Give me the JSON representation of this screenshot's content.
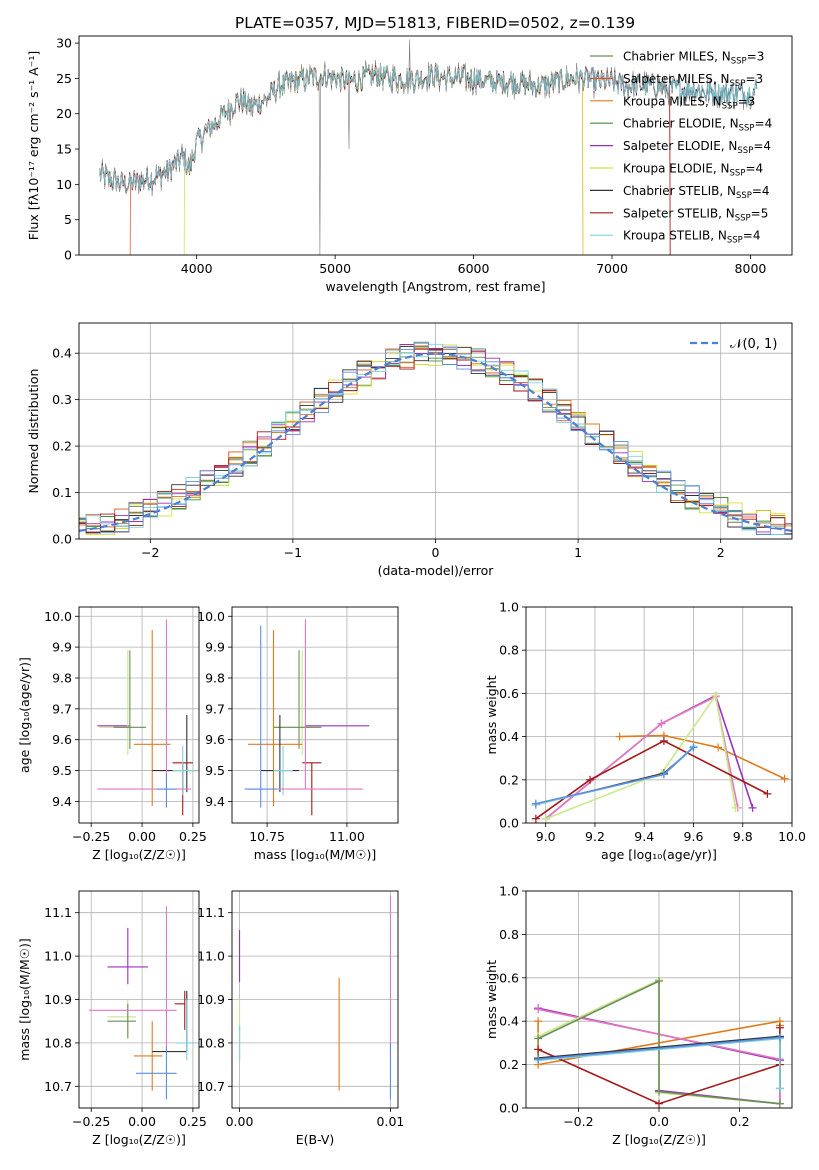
{
  "figure_title": "PLATE=0357, MJD=51813, FIBERID=0502, z=0.139",
  "models": [
    {
      "name": "Chabrier MILES",
      "nssp": "3",
      "color": "#6b8e5a"
    },
    {
      "name": "Salpeter MILES",
      "nssp": "3",
      "color": "#d9542b"
    },
    {
      "name": "Kroupa MILES",
      "nssp": "3",
      "color": "#e07b1a"
    },
    {
      "name": "Chabrier ELODIE",
      "nssp": "4",
      "color": "#3f8f3f"
    },
    {
      "name": "Salpeter ELODIE",
      "nssp": "4",
      "color": "#9b30c0"
    },
    {
      "name": "Kroupa ELODIE",
      "nssp": "4",
      "color": "#d4e03a"
    },
    {
      "name": "Chabrier STELIB",
      "nssp": "4",
      "color": "#333333"
    },
    {
      "name": "Salpeter STELIB",
      "nssp": "5",
      "color": "#a51818"
    },
    {
      "name": "Kroupa STELIB",
      "nssp": "4",
      "color": "#7fd3dd"
    }
  ],
  "extra_colors": {
    "pink": "#e377c2",
    "blue": "#5b8fe0",
    "lightgreen": "#c8e88a"
  },
  "chart_data": [
    {
      "id": "spectrum",
      "type": "line",
      "xlabel": "wavelength [Angstrom, rest frame]",
      "ylabel": "Flux [fλ10⁻¹⁷ erg cm⁻² s⁻¹ A⁻¹]",
      "xlim": [
        3150,
        8300
      ],
      "ylim": [
        0,
        31
      ],
      "xticks": [
        "4000",
        "5000",
        "6000",
        "7000",
        "8000"
      ],
      "yticks": [
        "0",
        "5",
        "10",
        "15",
        "20",
        "25",
        "30"
      ],
      "anchors_x": [
        3300,
        3350,
        3400,
        3500,
        3600,
        3700,
        3800,
        3850,
        3900,
        3950,
        4000,
        4100,
        4200,
        4300,
        4400,
        4500,
        4600,
        4700,
        4800,
        4900,
        5000,
        5100,
        5200,
        5300,
        5400,
        5500,
        5600,
        5700,
        5800,
        5900,
        6000,
        6100,
        6200,
        6300,
        6400,
        6500,
        6600,
        6700,
        6800,
        6900,
        7000,
        7100,
        7200,
        7300,
        7400,
        7500,
        7600,
        7700,
        7800,
        7900,
        8000,
        8050
      ],
      "anchors_y": [
        11.5,
        11,
        10.5,
        10,
        10.5,
        11,
        12,
        13,
        14,
        12,
        16,
        18,
        20,
        22,
        21,
        22,
        24,
        24.5,
        25,
        25.5,
        25,
        24.5,
        25,
        25.5,
        25,
        25,
        25,
        25.5,
        25,
        25,
        25,
        24.5,
        24.5,
        24.5,
        24,
        24,
        24.5,
        25,
        25,
        24.5,
        24.5,
        24,
        24,
        24,
        23.5,
        23.5,
        23.5,
        23,
        23,
        23,
        23,
        23.5
      ],
      "grid": false,
      "legend_position": "top-right"
    },
    {
      "id": "residuals",
      "type": "line",
      "xlabel": "(data-model)/error",
      "ylabel": "Normed distribution",
      "xlim": [
        -2.5,
        2.5
      ],
      "ylim": [
        0,
        0.465
      ],
      "xticks": [
        "−2",
        "−1",
        "0",
        "1",
        "2"
      ],
      "yticks": [
        "0.0",
        "0.1",
        "0.2",
        "0.3",
        "0.4"
      ],
      "reference_label": "𝒩(0, 1)",
      "grid": true,
      "legend_position": "top-right"
    },
    {
      "id": "age_vs_Z",
      "type": "scatter",
      "xlabel": "Z [log₁₀(Z/Z☉)]",
      "ylabel": "age  [log₁₀(age/yr)]",
      "xlim": [
        -0.31,
        0.28
      ],
      "ylim": [
        9.33,
        10.03
      ],
      "xticks": [
        "−0.25",
        "0.00",
        "0.25"
      ],
      "yticks": [
        "9.4",
        "9.5",
        "9.6",
        "9.7",
        "9.8",
        "9.9",
        "10.0"
      ],
      "points": [
        {
          "c": "#9b30c0",
          "x": -0.07,
          "y": 9.645,
          "xe": [
            0.15,
            0.01
          ],
          "ye": [
            0,
            0
          ]
        },
        {
          "c": "#c8e88a",
          "x": -0.07,
          "y": 9.64,
          "xe": [
            0.14,
            0.02
          ],
          "ye": [
            0.09,
            0.25
          ]
        },
        {
          "c": "#6b8e5a",
          "x": -0.06,
          "y": 9.64,
          "xe": [
            0.08,
            0.08
          ],
          "ye": [
            0.07,
            0.25
          ]
        },
        {
          "c": "#e07b1a",
          "x": 0.05,
          "y": 9.585,
          "xe": [
            0.09,
            0.09
          ],
          "ye": [
            0.2,
            0.37
          ]
        },
        {
          "c": "#333333",
          "x": 0.22,
          "y": 9.5,
          "xe": [
            0.17,
            0.05
          ],
          "ye": [
            0.07,
            0.18
          ]
        },
        {
          "c": "#a51818",
          "x": 0.2,
          "y": 9.525,
          "xe": [
            0.05,
            0.05
          ],
          "ye": [
            0.17,
            0
          ]
        },
        {
          "c": "#7fd3dd",
          "x": 0.2,
          "y": 9.5,
          "xe": [
            0.05,
            0.07
          ],
          "ye": [
            0.08,
            0.08
          ]
        },
        {
          "c": "#e377c2",
          "x": 0.12,
          "y": 9.44,
          "xe": [
            0.34,
            0.12
          ],
          "ye": [
            0,
            0.55
          ]
        },
        {
          "c": "#5b8fe0",
          "x": 0.12,
          "y": 9.44,
          "xe": [
            0.05,
            0.05
          ],
          "ye": [
            0.06,
            0.05
          ]
        }
      ],
      "grid": true
    },
    {
      "id": "age_vs_mass",
      "type": "scatter",
      "xlabel": "mass [log₁₀(M/M☉)]",
      "ylabel": "",
      "xlim": [
        10.64,
        11.16
      ],
      "ylim": [
        9.33,
        10.03
      ],
      "xticks": [
        "10.75",
        "11.00"
      ],
      "yticks": [
        "9.4",
        "9.5",
        "9.6",
        "9.7",
        "9.8",
        "9.9",
        "10.0"
      ],
      "points": [
        {
          "c": "#9b30c0",
          "x": 10.98,
          "y": 9.645,
          "xe": [
            0.11,
            0.09
          ],
          "ye": [
            0,
            0
          ]
        },
        {
          "c": "#c8e88a",
          "x": 10.86,
          "y": 9.64,
          "xe": [
            0.09,
            0.03
          ],
          "ye": [
            0.09,
            0.25
          ]
        },
        {
          "c": "#6b8e5a",
          "x": 10.85,
          "y": 9.64,
          "xe": [
            0.08,
            0.07
          ],
          "ye": [
            0.07,
            0.25
          ]
        },
        {
          "c": "#e07b1a",
          "x": 10.77,
          "y": 9.585,
          "xe": [
            0.08,
            0.09
          ],
          "ye": [
            0.2,
            0.37
          ]
        },
        {
          "c": "#333333",
          "x": 10.79,
          "y": 9.5,
          "xe": [
            0.06,
            0.06
          ],
          "ye": [
            0.07,
            0.18
          ]
        },
        {
          "c": "#a51818",
          "x": 10.89,
          "y": 9.525,
          "xe": [
            0.03,
            0.03
          ],
          "ye": [
            0.17,
            0
          ]
        },
        {
          "c": "#7fd3dd",
          "x": 10.8,
          "y": 9.5,
          "xe": [
            0.03,
            0.03
          ],
          "ye": [
            0.08,
            0.08
          ]
        },
        {
          "c": "#e377c2",
          "x": 10.87,
          "y": 9.44,
          "xe": [
            0.18,
            0.18
          ],
          "ye": [
            0,
            0.55
          ]
        },
        {
          "c": "#5b8fe0",
          "x": 10.73,
          "y": 9.44,
          "xe": [
            0.05,
            0.05
          ],
          "ye": [
            0.06,
            0.53
          ]
        }
      ],
      "grid": true
    },
    {
      "id": "weight_vs_age",
      "type": "line",
      "xlabel": "age  [log₁₀(age/yr)]",
      "ylabel": "mass weight",
      "xlim": [
        8.92,
        10.0
      ],
      "ylim": [
        0,
        1
      ],
      "xticks": [
        "9.0",
        "9.2",
        "9.4",
        "9.6",
        "9.8",
        "10.0"
      ],
      "yticks": [
        "0.0",
        "0.2",
        "0.4",
        "0.6",
        "0.8",
        "1.0"
      ],
      "series": [
        {
          "c": "#e07b1a",
          "x": [
            9.3,
            9.48,
            9.7,
            9.97
          ],
          "y": [
            0.4,
            0.405,
            0.35,
            0.205
          ]
        },
        {
          "c": "#9b30c0",
          "x": [
            9.0,
            9.47,
            9.69,
            9.84
          ],
          "y": [
            0.02,
            0.46,
            0.59,
            0.07
          ]
        },
        {
          "c": "#e377c2",
          "x": [
            9.0,
            9.47,
            9.69,
            9.78
          ],
          "y": [
            0.02,
            0.46,
            0.585,
            0.07
          ]
        },
        {
          "c": "#c8e88a",
          "x": [
            9.0,
            9.47,
            9.69,
            9.77
          ],
          "y": [
            0.02,
            0.23,
            0.59,
            0.07
          ]
        },
        {
          "c": "#a51818",
          "x": [
            8.96,
            9.18,
            9.48,
            9.9
          ],
          "y": [
            0.02,
            0.2,
            0.38,
            0.135
          ]
        },
        {
          "c": "#333333",
          "x": [
            8.96,
            9.48,
            9.6
          ],
          "y": [
            0.085,
            0.23,
            0.35
          ]
        },
        {
          "c": "#7fd3dd",
          "x": [
            8.96,
            9.48,
            9.6
          ],
          "y": [
            0.085,
            0.225,
            0.355
          ]
        },
        {
          "c": "#5b8fe0",
          "x": [
            8.96,
            9.48,
            9.6
          ],
          "y": [
            0.09,
            0.225,
            0.35
          ]
        }
      ],
      "grid": true
    },
    {
      "id": "mass_vs_Z",
      "type": "scatter",
      "xlabel": "Z [log₁₀(Z/Z☉)]",
      "ylabel": "mass [log₁₀(M/M☉)]",
      "xlim": [
        -0.31,
        0.28
      ],
      "ylim": [
        10.65,
        11.15
      ],
      "xticks": [
        "−0.25",
        "0.00",
        "0.25"
      ],
      "yticks": [
        "10.7",
        "10.8",
        "10.9",
        "11.0",
        "11.1"
      ],
      "points": [
        {
          "c": "#9b30c0",
          "x": -0.07,
          "y": 10.975,
          "xe": [
            0.1,
            0.1
          ],
          "ye": [
            0.04,
            0.09
          ]
        },
        {
          "c": "#c8e88a",
          "x": -0.07,
          "y": 10.86,
          "xe": [
            0.1,
            0.04
          ],
          "ye": [
            0.04,
            0.04
          ]
        },
        {
          "c": "#6b8e5a",
          "x": -0.07,
          "y": 10.85,
          "xe": [
            0.1,
            0.04
          ],
          "ye": [
            0.04,
            0.04
          ]
        },
        {
          "c": "#e377c2",
          "x": 0.12,
          "y": 10.875,
          "xe": [
            0.38,
            0.05
          ],
          "ye": [
            0.1,
            0.24
          ]
        },
        {
          "c": "#e07b1a",
          "x": 0.05,
          "y": 10.77,
          "xe": [
            0.09,
            0.05
          ],
          "ye": [
            0.08,
            0.08
          ]
        },
        {
          "c": "#a51818",
          "x": 0.21,
          "y": 10.89,
          "xe": [
            0.05,
            0.0
          ],
          "ye": [
            0.06,
            0.03
          ]
        },
        {
          "c": "#333333",
          "x": 0.22,
          "y": 10.78,
          "xe": [
            0.17,
            0.0
          ],
          "ye": [
            0.0,
            0.14
          ]
        },
        {
          "c": "#7fd3dd",
          "x": 0.22,
          "y": 10.8,
          "xe": [
            0.05,
            0.05
          ],
          "ye": [
            0.04,
            0.1
          ]
        },
        {
          "c": "#5b8fe0",
          "x": 0.12,
          "y": 10.73,
          "xe": [
            0.15,
            0.05
          ],
          "ye": [
            0.06,
            0.06
          ]
        }
      ],
      "grid": true
    },
    {
      "id": "mass_vs_ebv",
      "type": "scatter",
      "xlabel": "E(B-V)",
      "ylabel": "",
      "xlim": [
        -0.0005,
        0.0105
      ],
      "ylim": [
        10.65,
        11.15
      ],
      "xticks": [
        "0.00",
        "0.01"
      ],
      "yticks": [
        "10.7",
        "10.8",
        "10.9",
        "11.0",
        "11.1"
      ],
      "points": [
        {
          "c": "#9b30c0",
          "x": 0.0,
          "y": 10.98,
          "xe": [
            0,
            0
          ],
          "ye": [
            0.04,
            0.08
          ]
        },
        {
          "c": "#c8e88a",
          "x": 0.0,
          "y": 10.86,
          "xe": [
            0,
            0
          ],
          "ye": [
            0.04,
            0.04
          ]
        },
        {
          "c": "#6b8e5a",
          "x": 0.0,
          "y": 10.8,
          "xe": [
            0,
            0
          ],
          "ye": [
            0.04,
            0.04
          ]
        },
        {
          "c": "#7fd3dd",
          "x": 0.0,
          "y": 10.8,
          "xe": [
            0,
            0
          ],
          "ye": [
            0.04,
            0.04
          ]
        },
        {
          "c": "#e07b1a",
          "x": 0.0066,
          "y": 10.82,
          "xe": [
            0,
            0
          ],
          "ye": [
            0.13,
            0.13
          ]
        },
        {
          "c": "#e377c2",
          "x": 0.01,
          "y": 10.9,
          "xe": [
            0,
            0
          ],
          "ye": [
            0.13,
            0.24
          ]
        },
        {
          "c": "#5b8fe0",
          "x": 0.01,
          "y": 10.75,
          "xe": [
            0,
            0
          ],
          "ye": [
            0.08,
            0.05
          ]
        }
      ],
      "grid": true
    },
    {
      "id": "weight_vs_Z",
      "type": "line",
      "xlabel": "Z [log₁₀(Z/Z☉)]",
      "ylabel": "mass weight",
      "xlim": [
        -0.33,
        0.33
      ],
      "ylim": [
        0,
        1
      ],
      "xticks": [
        "−0.2",
        "0.0",
        "0.2"
      ],
      "yticks": [
        "0.0",
        "0.2",
        "0.4",
        "0.6",
        "0.8",
        "1.0"
      ],
      "series": [
        {
          "c": "#e07b1a",
          "x": [
            -0.3,
            -0.3,
            0.3,
            0.3
          ],
          "y": [
            0.4,
            0.2,
            0.4,
            0.38
          ]
        },
        {
          "c": "#9b30c0",
          "x": [
            -0.3,
            0.3,
            0.3,
            0.0
          ],
          "y": [
            0.46,
            0.22,
            0.02,
            0.08
          ]
        },
        {
          "c": "#e377c2",
          "x": [
            -0.3,
            0.3,
            0.3
          ],
          "y": [
            0.455,
            0.225,
            0.02
          ]
        },
        {
          "c": "#c8e88a",
          "x": [
            -0.3,
            0.0,
            0.0,
            0.3
          ],
          "y": [
            0.33,
            0.59,
            0.07,
            0.02
          ]
        },
        {
          "c": "#6b8e5a",
          "x": [
            -0.3,
            0.0,
            0.0,
            0.3
          ],
          "y": [
            0.32,
            0.585,
            0.075,
            0.02
          ]
        },
        {
          "c": "#a51818",
          "x": [
            -0.3,
            0.0,
            0.3,
            0.3
          ],
          "y": [
            0.27,
            0.02,
            0.2,
            0.37
          ]
        },
        {
          "c": "#333333",
          "x": [
            -0.3,
            0.3,
            0.3
          ],
          "y": [
            0.23,
            0.33,
            0.09
          ]
        },
        {
          "c": "#7fd3dd",
          "x": [
            -0.3,
            0.3,
            0.3
          ],
          "y": [
            0.22,
            0.32,
            0.09
          ]
        },
        {
          "c": "#5b8fe0",
          "x": [
            -0.3,
            0.3
          ],
          "y": [
            0.225,
            0.325
          ]
        }
      ],
      "grid": true
    }
  ]
}
